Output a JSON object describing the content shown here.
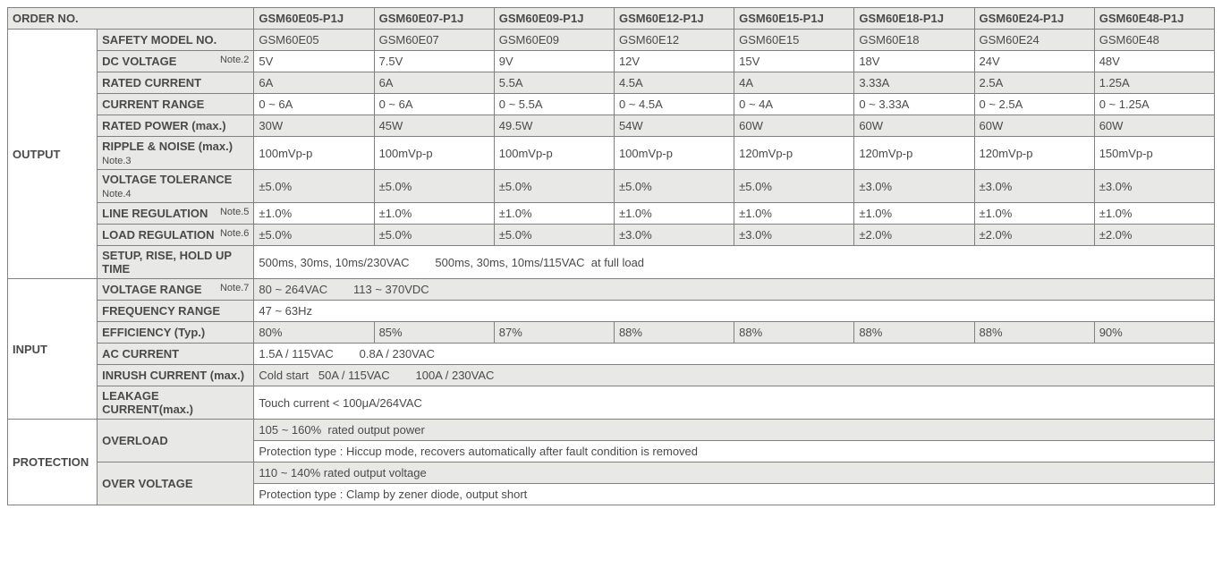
{
  "header": {
    "orderNo": "ORDER NO.",
    "models": [
      "GSM60E05-P1J",
      "GSM60E07-P1J",
      "GSM60E09-P1J",
      "GSM60E12-P1J",
      "GSM60E15-P1J",
      "GSM60E18-P1J",
      "GSM60E24-P1J",
      "GSM60E48-P1J"
    ]
  },
  "sections": {
    "output": "OUTPUT",
    "input": "INPUT",
    "protection": "PROTECTION"
  },
  "rows": {
    "safetyModel": {
      "label": "SAFETY MODEL NO.",
      "vals": [
        "GSM60E05",
        "GSM60E07",
        "GSM60E09",
        "GSM60E12",
        "GSM60E15",
        "GSM60E18",
        "GSM60E24",
        "GSM60E48"
      ]
    },
    "dcVoltage": {
      "label": "DC VOLTAGE",
      "note": "Note.2",
      "vals": [
        "5V",
        "7.5V",
        "9V",
        "12V",
        "15V",
        "18V",
        "24V",
        "48V"
      ]
    },
    "ratedCurrent": {
      "label": "RATED CURRENT",
      "vals": [
        "6A",
        "6A",
        "5.5A",
        "4.5A",
        "4A",
        "3.33A",
        "2.5A",
        "1.25A"
      ]
    },
    "currentRange": {
      "label": "CURRENT RANGE",
      "vals": [
        "0 ~ 6A",
        "0 ~ 6A",
        "0 ~ 5.5A",
        "0 ~ 4.5A",
        "0 ~ 4A",
        "0 ~ 3.33A",
        "0 ~ 2.5A",
        "0 ~ 1.25A"
      ]
    },
    "ratedPower": {
      "label": "RATED POWER (max.)",
      "vals": [
        "30W",
        "45W",
        "49.5W",
        "54W",
        "60W",
        "60W",
        "60W",
        "60W"
      ]
    },
    "ripple": {
      "label": "RIPPLE & NOISE (max.)",
      "note": "Note.3",
      "vals": [
        "100mVp-p",
        "100mVp-p",
        "100mVp-p",
        "100mVp-p",
        "120mVp-p",
        "120mVp-p",
        "120mVp-p",
        "150mVp-p"
      ]
    },
    "voltTol": {
      "label": "VOLTAGE TOLERANCE",
      "note": "Note.4",
      "vals": [
        "±5.0%",
        "±5.0%",
        "±5.0%",
        "±5.0%",
        "±5.0%",
        "±3.0%",
        "±3.0%",
        "±3.0%"
      ]
    },
    "lineReg": {
      "label": "LINE REGULATION",
      "note": "Note.5",
      "vals": [
        "±1.0%",
        "±1.0%",
        "±1.0%",
        "±1.0%",
        "±1.0%",
        "±1.0%",
        "±1.0%",
        "±1.0%"
      ]
    },
    "loadReg": {
      "label": "LOAD REGULATION",
      "note": "Note.6",
      "vals": [
        "±5.0%",
        "±5.0%",
        "±5.0%",
        "±3.0%",
        "±3.0%",
        "±2.0%",
        "±2.0%",
        "±2.0%"
      ]
    },
    "setup": {
      "label": "SETUP, RISE, HOLD UP TIME",
      "full": "500ms, 30ms, 10ms/230VAC        500ms, 30ms, 10ms/115VAC  at full load"
    },
    "voltRange": {
      "label": "VOLTAGE RANGE",
      "note": "Note.7",
      "full": "80 ~ 264VAC        113 ~ 370VDC"
    },
    "freqRange": {
      "label": "FREQUENCY RANGE",
      "full": "47 ~ 63Hz"
    },
    "efficiency": {
      "label": "EFFICIENCY (Typ.)",
      "vals": [
        "80%",
        "85%",
        "87%",
        "88%",
        "88%",
        "88%",
        "88%",
        "90%"
      ]
    },
    "acCurrent": {
      "label": "AC CURRENT",
      "full": "1.5A / 115VAC        0.8A / 230VAC"
    },
    "inrush": {
      "label": "INRUSH CURRENT (max.)",
      "full": "Cold start   50A / 115VAC        100A / 230VAC"
    },
    "leakage": {
      "label": "LEAKAGE CURRENT(max.)",
      "full": "Touch current < 100μA/264VAC"
    },
    "overload": {
      "label": "OVERLOAD",
      "line1": "105 ~ 160%  rated output power",
      "line2": "Protection type : Hiccup mode, recovers automatically after fault condition is removed"
    },
    "overvoltage": {
      "label": "OVER VOLTAGE",
      "line1": "110 ~ 140% rated output voltage",
      "line2": "Protection type : Clamp by zener diode, output short"
    }
  }
}
